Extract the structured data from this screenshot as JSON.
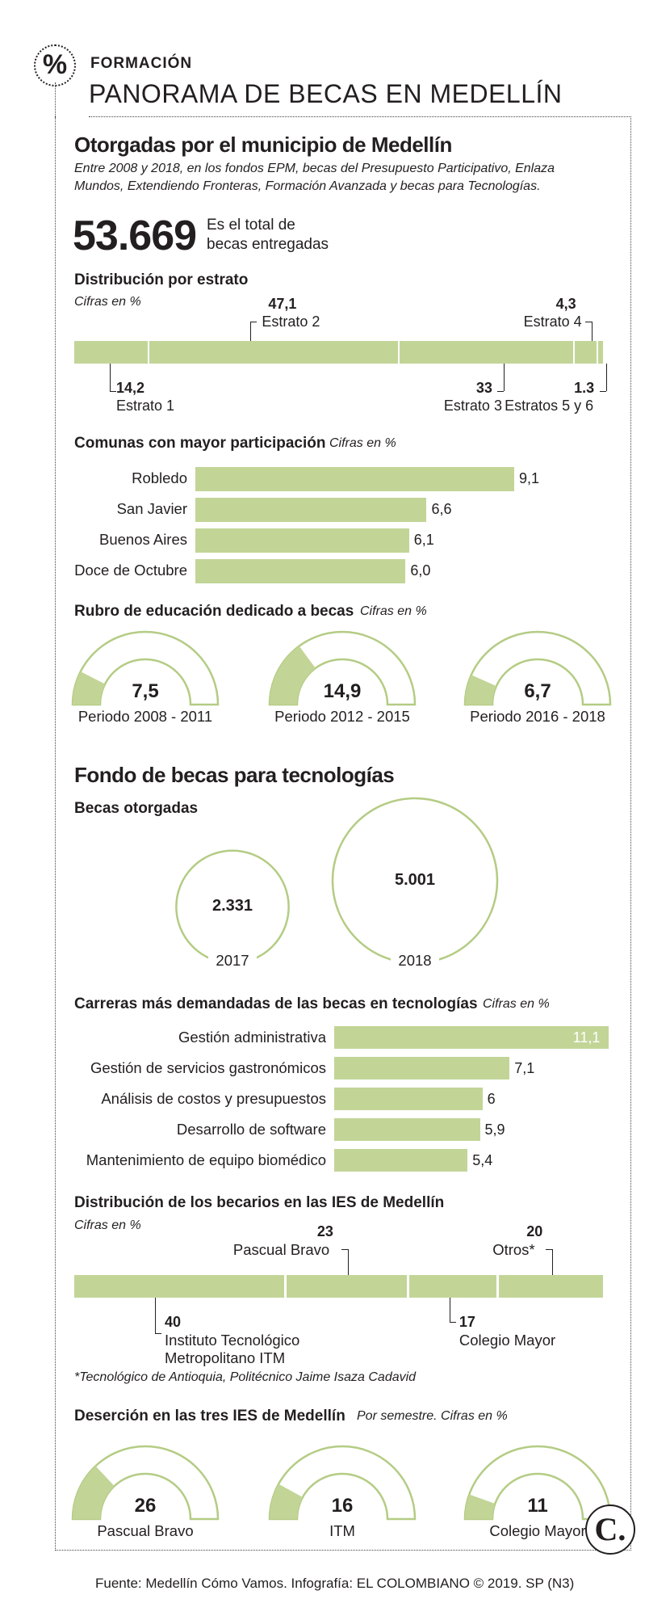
{
  "header": {
    "icon_glyph": "%",
    "kicker": "FORMACIÓN",
    "title": "PANORAMA DE BECAS EN MEDELLÍN"
  },
  "municipio": {
    "title": "Otorgadas por el municipio de Medellín",
    "desc": "Entre 2008 y 2018, en los fondos EPM, becas del Presupuesto Participativo, Enlaza Mundos, Extendiendo Fronteras, Formación Avanzada y becas para Tecnologías.",
    "total": "53.669",
    "total_label_1": "Es el total de",
    "total_label_2": "becas entregadas"
  },
  "colors": {
    "bar": "#c2d597",
    "ring": "#b4cc84",
    "text": "#231f20"
  },
  "estrato": {
    "title": "Distribución por estrato",
    "unit": "Cifras en %",
    "segments": [
      {
        "label": "Estrato 1",
        "value": "14,2"
      },
      {
        "label": "Estrato 2",
        "value": "47,1"
      },
      {
        "label": "Estrato 3",
        "value": "33"
      },
      {
        "label": "Estrato 4",
        "value": "4,3"
      },
      {
        "label": "Estratos 5 y 6",
        "value": "1.3"
      }
    ]
  },
  "comunas": {
    "title": "Comunas con mayor participación",
    "unit": "Cifras en %",
    "items": [
      {
        "label": "Robledo",
        "value": "9,1"
      },
      {
        "label": "San Javier",
        "value": "6,6"
      },
      {
        "label": "Buenos Aires",
        "value": "6,1"
      },
      {
        "label": "Doce de Octubre",
        "value": "6,0"
      }
    ]
  },
  "rubro": {
    "title": "Rubro de educación dedicado a becas",
    "unit": "Cifras en %",
    "gauges": [
      {
        "label": "Periodo 2008 - 2011",
        "value": "7,5"
      },
      {
        "label": "Periodo 2012 - 2015",
        "value": "14,9"
      },
      {
        "label": "Periodo 2016 - 2018",
        "value": "6,7"
      }
    ]
  },
  "fondo": {
    "title": "Fondo de becas para tecnologías",
    "becas_title": "Becas otorgadas",
    "circles": [
      {
        "year": "2017",
        "value": "2.331"
      },
      {
        "year": "2018",
        "value": "5.001"
      }
    ]
  },
  "carreras": {
    "title": "Carreras más demandadas de las becas en tecnologías",
    "unit": "Cifras en %",
    "items": [
      {
        "label": "Gestión administrativa",
        "value": "11,1"
      },
      {
        "label": "Gestión de servicios gastronómicos",
        "value": "7,1"
      },
      {
        "label": "Análisis de costos y presupuestos",
        "value": "6"
      },
      {
        "label": "Desarrollo de software",
        "value": "5,9"
      },
      {
        "label": "Mantenimiento de equipo biomédico",
        "value": "5,4"
      }
    ]
  },
  "ies": {
    "title": "Distribución de los becarios en las IES de Medellín",
    "unit": "Cifras en %",
    "segments": [
      {
        "label_1": "Instituto Tecnológico",
        "label_2": "Metropolitano ITM",
        "value": "40"
      },
      {
        "label_1": "Pascual Bravo",
        "label_2": "",
        "value": "23"
      },
      {
        "label_1": "Colegio Mayor",
        "label_2": "",
        "value": "17"
      },
      {
        "label_1": "Otros*",
        "label_2": "",
        "value": "20"
      }
    ],
    "footnote": "*Tecnológico de Antioquia, Politécnico Jaime Isaza Cadavid"
  },
  "desercion": {
    "title": "Deserción en las tres IES de Medellín",
    "unit": "Por semestre. Cifras en %",
    "gauges": [
      {
        "label": "Pascual Bravo",
        "value": "26"
      },
      {
        "label": "ITM",
        "value": "16"
      },
      {
        "label": "Colegio Mayor",
        "value": "11"
      }
    ]
  },
  "chart_data": [
    {
      "type": "bar",
      "title": "Distribución por estrato",
      "stacked": true,
      "unit": "Cifras en %",
      "categories": [
        "Estrato 1",
        "Estrato 2",
        "Estrato 3",
        "Estrato 4",
        "Estratos 5 y 6"
      ],
      "values": [
        14.2,
        47.1,
        33,
        4.3,
        1.3
      ]
    },
    {
      "type": "bar",
      "orientation": "horizontal",
      "title": "Comunas con mayor participación",
      "unit": "Cifras en %",
      "categories": [
        "Robledo",
        "San Javier",
        "Buenos Aires",
        "Doce de Octubre"
      ],
      "values": [
        9.1,
        6.6,
        6.1,
        6.0
      ]
    },
    {
      "type": "pie",
      "variant": "half-donut gauges",
      "title": "Rubro de educación dedicado a becas",
      "unit": "Cifras en %",
      "categories": [
        "Periodo 2008 - 2011",
        "Periodo 2012 - 2015",
        "Periodo 2016 - 2018"
      ],
      "values": [
        7.5,
        14.9,
        6.7
      ]
    },
    {
      "type": "scatter",
      "variant": "proportional circles",
      "title": "Becas otorgadas",
      "categories": [
        "2017",
        "2018"
      ],
      "values": [
        2331,
        5001
      ]
    },
    {
      "type": "bar",
      "orientation": "horizontal",
      "title": "Carreras más demandadas de las becas en tecnologías",
      "unit": "Cifras en %",
      "categories": [
        "Gestión administrativa",
        "Gestión de servicios gastronómicos",
        "Análisis de costos y presupuestos",
        "Desarrollo de software",
        "Mantenimiento de equipo biomédico"
      ],
      "values": [
        11.1,
        7.1,
        6,
        5.9,
        5.4
      ]
    },
    {
      "type": "bar",
      "stacked": true,
      "title": "Distribución de los becarios en las IES de Medellín",
      "unit": "Cifras en %",
      "categories": [
        "Instituto Tecnológico Metropolitano ITM",
        "Pascual Bravo",
        "Colegio Mayor",
        "Otros*"
      ],
      "values": [
        40,
        23,
        17,
        20
      ]
    },
    {
      "type": "pie",
      "variant": "half-donut gauges",
      "title": "Deserción en las tres IES de Medellín",
      "unit": "Por semestre. Cifras en %",
      "categories": [
        "Pascual Bravo",
        "ITM",
        "Colegio Mayor"
      ],
      "values": [
        26,
        16,
        11
      ]
    }
  ],
  "footer": {
    "source": "Fuente: Medellín Cómo Vamos. Infografía: EL COLOMBIANO © 2019. SP (N3)",
    "logo": "C."
  }
}
